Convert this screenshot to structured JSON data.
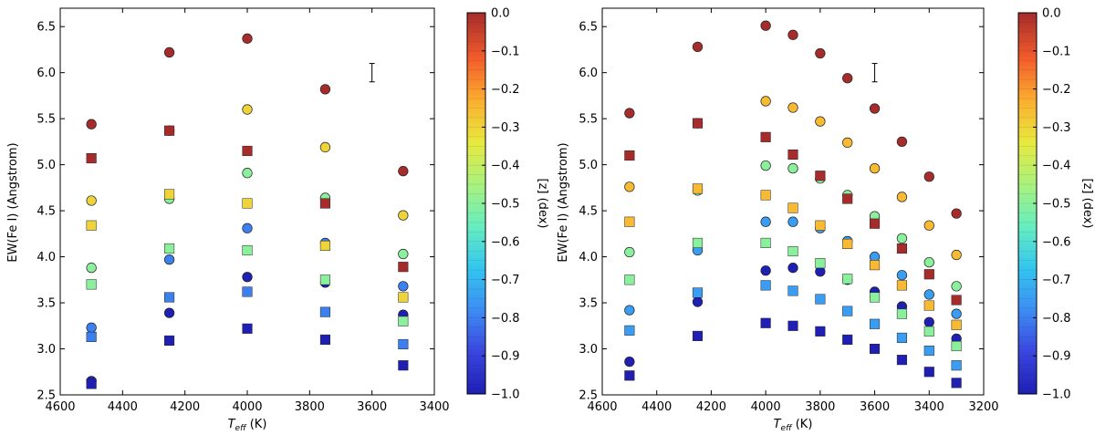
{
  "chart_data": [
    {
      "type": "scatter",
      "xlabel_main": "T",
      "xlabel_sub": "eff",
      "xlabel_unit": "(K)",
      "ylabel": "EW(Fe I) (Angstrom)",
      "xlim": [
        4600,
        3400
      ],
      "ylim": [
        2.5,
        6.7
      ],
      "xticks": [
        4600,
        4400,
        4200,
        4000,
        3800,
        3600,
        3400
      ],
      "yticks": [
        2.5,
        3.0,
        3.5,
        4.0,
        4.5,
        5.0,
        5.5,
        6.0,
        6.5
      ],
      "colorbar": {
        "label": "[z] (dex)",
        "min": -1.0,
        "max": 0.0,
        "ticks": [
          0.0,
          -0.1,
          -0.2,
          -0.3,
          -0.4,
          -0.5,
          -0.6,
          -0.7,
          -0.8,
          -0.9,
          -1.0
        ]
      },
      "errorbar": {
        "x": 3600,
        "y": 6.0,
        "err": 0.1
      },
      "series": [
        {
          "marker": "circle",
          "points": [
            [
              4500,
              5.44,
              0.0
            ],
            [
              4500,
              4.61,
              -0.3
            ],
            [
              4500,
              3.88,
              -0.5
            ],
            [
              4500,
              3.23,
              -0.8
            ],
            [
              4500,
              2.65,
              -1.0
            ],
            [
              4250,
              6.22,
              0.0
            ],
            [
              4250,
              5.37,
              -0.3
            ],
            [
              4250,
              4.63,
              -0.5
            ],
            [
              4250,
              3.97,
              -0.8
            ],
            [
              4250,
              3.39,
              -1.0
            ],
            [
              4000,
              6.37,
              0.0
            ],
            [
              4000,
              5.6,
              -0.3
            ],
            [
              4000,
              4.91,
              -0.5
            ],
            [
              4000,
              4.31,
              -0.8
            ],
            [
              4000,
              3.78,
              -1.0
            ],
            [
              3750,
              5.82,
              0.0
            ],
            [
              3750,
              5.19,
              -0.3
            ],
            [
              3750,
              4.64,
              -0.5
            ],
            [
              3750,
              4.15,
              -0.8
            ],
            [
              3750,
              3.72,
              -1.0
            ],
            [
              3500,
              4.93,
              0.0
            ],
            [
              3500,
              4.45,
              -0.3
            ],
            [
              3500,
              4.03,
              -0.5
            ],
            [
              3500,
              3.68,
              -0.8
            ],
            [
              3500,
              3.37,
              -1.0
            ]
          ]
        },
        {
          "marker": "square",
          "points": [
            [
              4500,
              5.07,
              0.0
            ],
            [
              4500,
              4.34,
              -0.3
            ],
            [
              4500,
              3.7,
              -0.5
            ],
            [
              4500,
              3.13,
              -0.8
            ],
            [
              4500,
              2.62,
              -1.0
            ],
            [
              4250,
              5.37,
              0.0
            ],
            [
              4250,
              4.68,
              -0.3
            ],
            [
              4250,
              4.09,
              -0.5
            ],
            [
              4250,
              3.56,
              -0.8
            ],
            [
              4250,
              3.09,
              -1.0
            ],
            [
              4000,
              5.15,
              0.0
            ],
            [
              4000,
              4.58,
              -0.3
            ],
            [
              4000,
              4.07,
              -0.5
            ],
            [
              4000,
              3.62,
              -0.8
            ],
            [
              4000,
              3.22,
              -1.0
            ],
            [
              3750,
              4.58,
              0.0
            ],
            [
              3750,
              4.12,
              -0.3
            ],
            [
              3750,
              3.75,
              -0.5
            ],
            [
              3750,
              3.4,
              -0.8
            ],
            [
              3750,
              3.1,
              -1.0
            ],
            [
              3500,
              3.89,
              0.0
            ],
            [
              3500,
              3.56,
              -0.3
            ],
            [
              3500,
              3.3,
              -0.5
            ],
            [
              3500,
              3.05,
              -0.8
            ],
            [
              3500,
              2.82,
              -1.0
            ]
          ]
        }
      ]
    },
    {
      "type": "scatter",
      "xlabel_main": "T",
      "xlabel_sub": "eff",
      "xlabel_unit": "(K)",
      "ylabel": "EW(Fe I) (Angstrom)",
      "xlim": [
        4600,
        3200
      ],
      "ylim": [
        2.5,
        6.7
      ],
      "xticks": [
        4600,
        4400,
        4200,
        4000,
        3800,
        3600,
        3400,
        3200
      ],
      "yticks": [
        2.5,
        3.0,
        3.5,
        4.0,
        4.5,
        5.0,
        5.5,
        6.0,
        6.5
      ],
      "colorbar": {
        "label": "[z] (dex)",
        "min": -1.0,
        "max": 0.0,
        "ticks": [
          0.0,
          -0.1,
          -0.2,
          -0.3,
          -0.4,
          -0.5,
          -0.6,
          -0.7,
          -0.8,
          -0.9,
          -1.0
        ]
      },
      "errorbar": {
        "x": 3600,
        "y": 6.0,
        "err": 0.1
      },
      "series": [
        {
          "marker": "circle",
          "points": [
            [
              4500,
              5.56,
              0.0
            ],
            [
              4500,
              4.76,
              -0.25
            ],
            [
              4500,
              4.05,
              -0.5
            ],
            [
              4500,
              3.42,
              -0.75
            ],
            [
              4500,
              2.86,
              -1.0
            ],
            [
              4250,
              6.28,
              0.0
            ],
            [
              4250,
              5.45,
              -0.25
            ],
            [
              4250,
              4.72,
              -0.5
            ],
            [
              4250,
              4.07,
              -0.75
            ],
            [
              4250,
              3.51,
              -1.0
            ],
            [
              4000,
              6.51,
              0.0
            ],
            [
              4000,
              5.69,
              -0.25
            ],
            [
              4000,
              4.99,
              -0.5
            ],
            [
              4000,
              4.38,
              -0.75
            ],
            [
              4000,
              3.85,
              -1.0
            ],
            [
              3900,
              6.41,
              0.0
            ],
            [
              3900,
              5.62,
              -0.25
            ],
            [
              3900,
              4.96,
              -0.5
            ],
            [
              3900,
              4.38,
              -0.75
            ],
            [
              3900,
              3.88,
              -1.0
            ],
            [
              3800,
              6.21,
              0.0
            ],
            [
              3800,
              5.47,
              -0.25
            ],
            [
              3800,
              4.85,
              -0.5
            ],
            [
              3800,
              4.31,
              -0.75
            ],
            [
              3800,
              3.84,
              -1.0
            ],
            [
              3700,
              5.94,
              0.0
            ],
            [
              3700,
              5.24,
              -0.25
            ],
            [
              3700,
              4.67,
              -0.5
            ],
            [
              3700,
              4.17,
              -0.75
            ],
            [
              3700,
              3.75,
              -1.0
            ],
            [
              3600,
              5.61,
              0.0
            ],
            [
              3600,
              4.96,
              -0.25
            ],
            [
              3600,
              4.44,
              -0.5
            ],
            [
              3600,
              4.0,
              -0.75
            ],
            [
              3600,
              3.62,
              -1.0
            ],
            [
              3500,
              5.25,
              0.0
            ],
            [
              3500,
              4.65,
              -0.25
            ],
            [
              3500,
              4.2,
              -0.5
            ],
            [
              3500,
              3.8,
              -0.75
            ],
            [
              3500,
              3.46,
              -1.0
            ],
            [
              3400,
              4.87,
              0.0
            ],
            [
              3400,
              4.34,
              -0.25
            ],
            [
              3400,
              3.94,
              -0.5
            ],
            [
              3400,
              3.59,
              -0.75
            ],
            [
              3400,
              3.29,
              -1.0
            ],
            [
              3300,
              4.47,
              0.0
            ],
            [
              3300,
              4.02,
              -0.25
            ],
            [
              3300,
              3.68,
              -0.5
            ],
            [
              3300,
              3.38,
              -0.75
            ],
            [
              3300,
              3.11,
              -1.0
            ]
          ]
        },
        {
          "marker": "square",
          "points": [
            [
              4500,
              5.1,
              0.0
            ],
            [
              4500,
              4.38,
              -0.25
            ],
            [
              4500,
              3.75,
              -0.5
            ],
            [
              4500,
              3.2,
              -0.75
            ],
            [
              4500,
              2.71,
              -1.0
            ],
            [
              4250,
              5.45,
              0.0
            ],
            [
              4250,
              4.74,
              -0.25
            ],
            [
              4250,
              4.15,
              -0.5
            ],
            [
              4250,
              3.61,
              -0.75
            ],
            [
              4250,
              3.14,
              -1.0
            ],
            [
              4000,
              5.3,
              0.0
            ],
            [
              4000,
              4.67,
              -0.25
            ],
            [
              4000,
              4.15,
              -0.5
            ],
            [
              4000,
              3.69,
              -0.75
            ],
            [
              4000,
              3.28,
              -1.0
            ],
            [
              3900,
              5.11,
              0.0
            ],
            [
              3900,
              4.53,
              -0.25
            ],
            [
              3900,
              4.06,
              -0.5
            ],
            [
              3900,
              3.63,
              -0.75
            ],
            [
              3900,
              3.25,
              -1.0
            ],
            [
              3800,
              4.88,
              0.0
            ],
            [
              3800,
              4.34,
              -0.25
            ],
            [
              3800,
              3.93,
              -0.5
            ],
            [
              3800,
              3.54,
              -0.75
            ],
            [
              3800,
              3.19,
              -1.0
            ],
            [
              3700,
              4.63,
              0.0
            ],
            [
              3700,
              4.14,
              -0.25
            ],
            [
              3700,
              3.76,
              -0.5
            ],
            [
              3700,
              3.41,
              -0.75
            ],
            [
              3700,
              3.1,
              -1.0
            ],
            [
              3600,
              4.36,
              0.0
            ],
            [
              3600,
              3.91,
              -0.25
            ],
            [
              3600,
              3.56,
              -0.5
            ],
            [
              3600,
              3.27,
              -0.75
            ],
            [
              3600,
              3.0,
              -1.0
            ],
            [
              3500,
              4.09,
              0.0
            ],
            [
              3500,
              3.69,
              -0.25
            ],
            [
              3500,
              3.38,
              -0.5
            ],
            [
              3500,
              3.12,
              -0.75
            ],
            [
              3500,
              2.88,
              -1.0
            ],
            [
              3400,
              3.81,
              0.0
            ],
            [
              3400,
              3.47,
              -0.25
            ],
            [
              3400,
              3.19,
              -0.5
            ],
            [
              3400,
              2.98,
              -0.75
            ],
            [
              3400,
              2.75,
              -1.0
            ],
            [
              3300,
              3.53,
              0.0
            ],
            [
              3300,
              3.26,
              -0.25
            ],
            [
              3300,
              3.03,
              -0.5
            ],
            [
              3300,
              2.82,
              -0.75
            ],
            [
              3300,
              2.63,
              -1.0
            ]
          ]
        }
      ]
    }
  ]
}
